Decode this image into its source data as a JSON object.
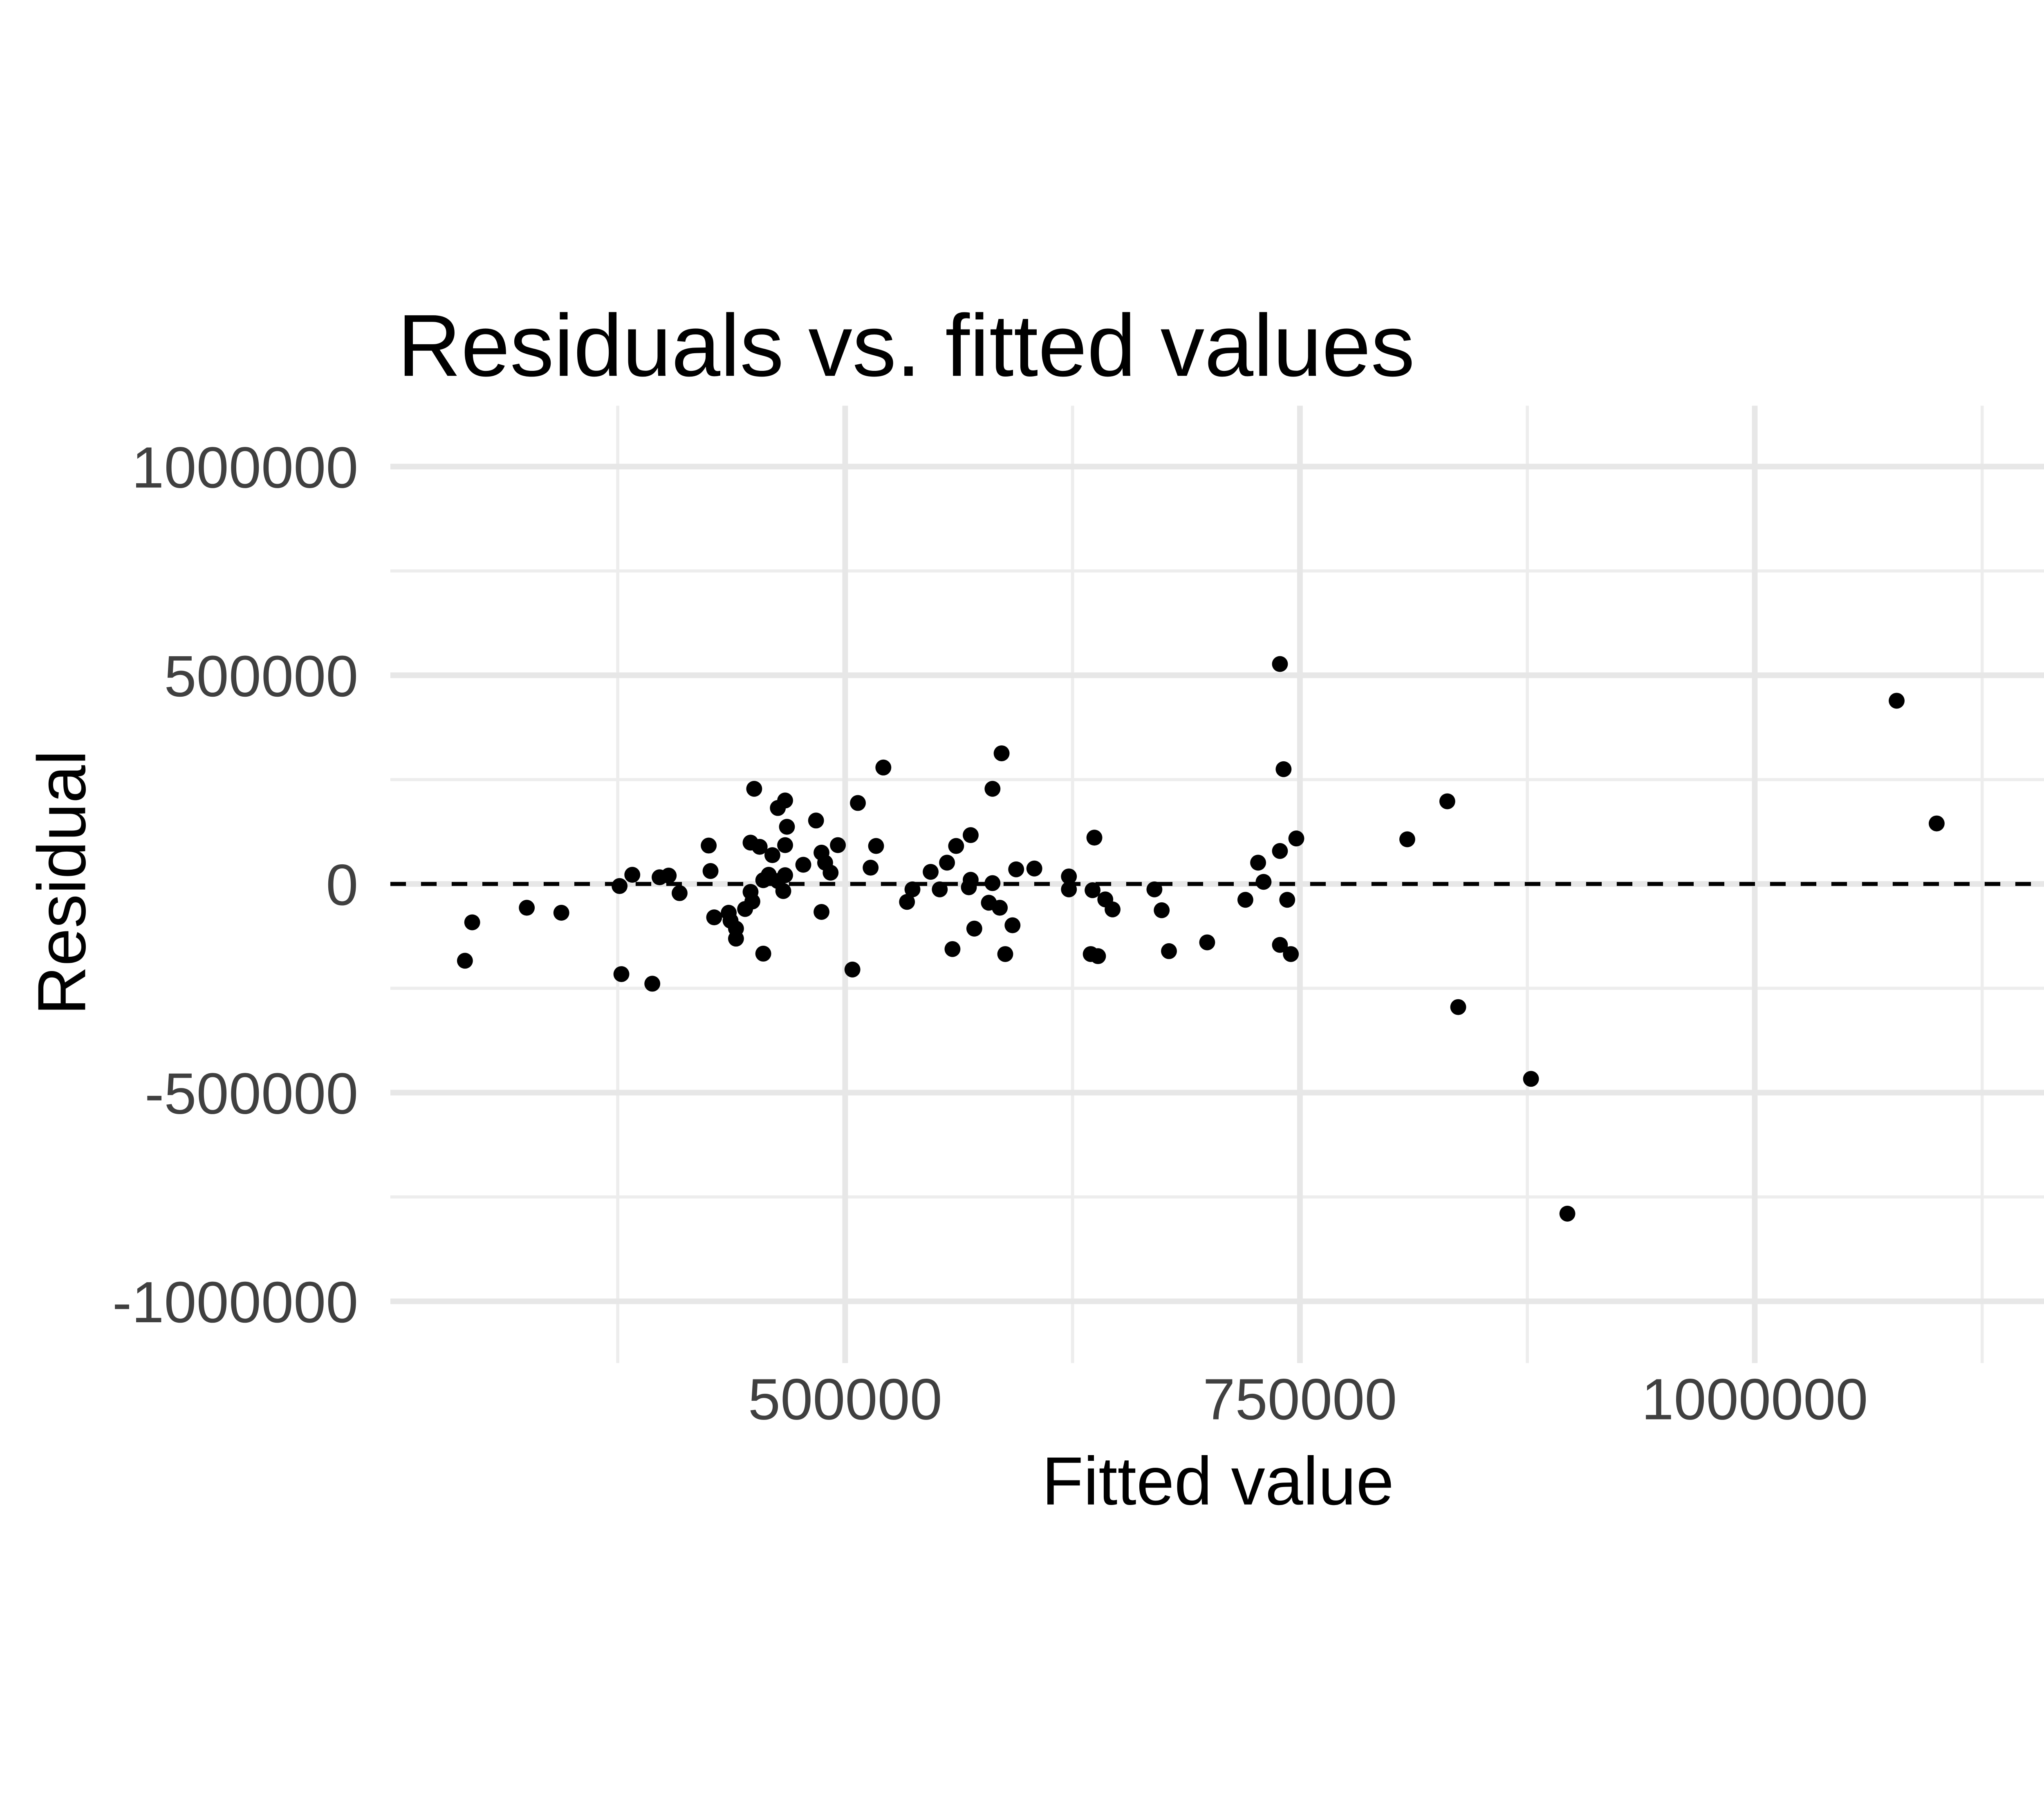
{
  "title": "Residuals vs. fitted values",
  "chart_data": {
    "type": "scatter",
    "title": "Residuals vs. fitted values",
    "xlabel": "Fitted value",
    "ylabel": "Residual",
    "xlim": [
      250000,
      1159000
    ],
    "ylim": [
      -1148000,
      1146000
    ],
    "grid": true,
    "legend": false,
    "x_ticks": {
      "values": [
        500000,
        750000,
        1000000
      ],
      "labels": [
        "500000",
        "750000",
        "1000000"
      ]
    },
    "x_minor_ticks": [
      375000,
      625000,
      875000,
      1125000
    ],
    "y_ticks": {
      "values": [
        1000000,
        500000,
        0,
        -500000,
        -1000000
      ],
      "labels": [
        "1000000",
        "500000",
        "0",
        "-500000",
        "-1000000"
      ]
    },
    "y_minor_ticks": [
      750000,
      250000,
      -250000,
      -750000
    ],
    "zero_line": {
      "y": 0,
      "style": "dashed",
      "color": "#000000"
    },
    "point_color": "#000000",
    "grid_major_color": "#E7E7E7",
    "grid_minor_color": "#EDEDED",
    "tick_text_color": "#404040",
    "background_color": "#FFFFFF",
    "points": [
      [
        376000,
        -5000
      ],
      [
        383000,
        22000
      ],
      [
        398000,
        16000
      ],
      [
        403000,
        20000
      ],
      [
        409000,
        -22000
      ],
      [
        425000,
        92000
      ],
      [
        426000,
        31000
      ],
      [
        448000,
        99000
      ],
      [
        453000,
        89000
      ],
      [
        460000,
        69000
      ],
      [
        467000,
        93000
      ],
      [
        468000,
        137000
      ],
      [
        463000,
        182000
      ],
      [
        467000,
        200000
      ],
      [
        450000,
        228000
      ],
      [
        484000,
        152000
      ],
      [
        477000,
        46000
      ],
      [
        487000,
        75000
      ],
      [
        489000,
        51000
      ],
      [
        492000,
        27000
      ],
      [
        496000,
        93000
      ],
      [
        507000,
        194000
      ],
      [
        514000,
        39000
      ],
      [
        517000,
        91000
      ],
      [
        521000,
        279000
      ],
      [
        547000,
        29000
      ],
      [
        556000,
        51000
      ],
      [
        561000,
        91000
      ],
      [
        569000,
        117000
      ],
      [
        581000,
        228000
      ],
      [
        586000,
        313000
      ],
      [
        594000,
        35000
      ],
      [
        604000,
        37000
      ],
      [
        637000,
        111000
      ],
      [
        623000,
        18000
      ],
      [
        455000,
        9000
      ],
      [
        458000,
        22000
      ],
      [
        463000,
        7000
      ],
      [
        467000,
        21000
      ],
      [
        448000,
        -19000
      ],
      [
        466000,
        -17000
      ],
      [
        325000,
        -57000
      ],
      [
        344000,
        -69000
      ],
      [
        295000,
        -92000
      ],
      [
        291000,
        -184000
      ],
      [
        428000,
        -80000
      ],
      [
        436000,
        -69000
      ],
      [
        437000,
        -88000
      ],
      [
        440000,
        -107000
      ],
      [
        440000,
        -131000
      ],
      [
        455000,
        -167000
      ],
      [
        449000,
        -42000
      ],
      [
        445000,
        -60000
      ],
      [
        487000,
        -67000
      ],
      [
        504000,
        -205000
      ],
      [
        377000,
        -216000
      ],
      [
        394000,
        -239000
      ],
      [
        537000,
        -13000
      ],
      [
        534000,
        -43000
      ],
      [
        552000,
        -13000
      ],
      [
        568000,
        -8000
      ],
      [
        569000,
        10000
      ],
      [
        581000,
        2000
      ],
      [
        579000,
        -45000
      ],
      [
        585000,
        -57000
      ],
      [
        592000,
        -99000
      ],
      [
        571000,
        -107000
      ],
      [
        559000,
        -156000
      ],
      [
        588000,
        -168000
      ],
      [
        623000,
        -13000
      ],
      [
        636000,
        -15000
      ],
      [
        643000,
        -37000
      ],
      [
        647000,
        -61000
      ],
      [
        670000,
        -13000
      ],
      [
        674000,
        -63000
      ],
      [
        635000,
        -168000
      ],
      [
        639000,
        -173000
      ],
      [
        678000,
        -161000
      ],
      [
        699000,
        -140000
      ],
      [
        720000,
        -38000
      ],
      [
        730000,
        5000
      ],
      [
        739000,
        -146000
      ],
      [
        745000,
        -168000
      ],
      [
        743000,
        -38000
      ],
      [
        739000,
        527000
      ],
      [
        741000,
        275000
      ],
      [
        748000,
        109000
      ],
      [
        739000,
        79000
      ],
      [
        727000,
        51000
      ],
      [
        831000,
        198000
      ],
      [
        809000,
        107000
      ],
      [
        837000,
        -295000
      ],
      [
        877000,
        -467000
      ],
      [
        1078000,
        439000
      ],
      [
        1100000,
        145000
      ],
      [
        897000,
        -790000
      ]
    ]
  }
}
